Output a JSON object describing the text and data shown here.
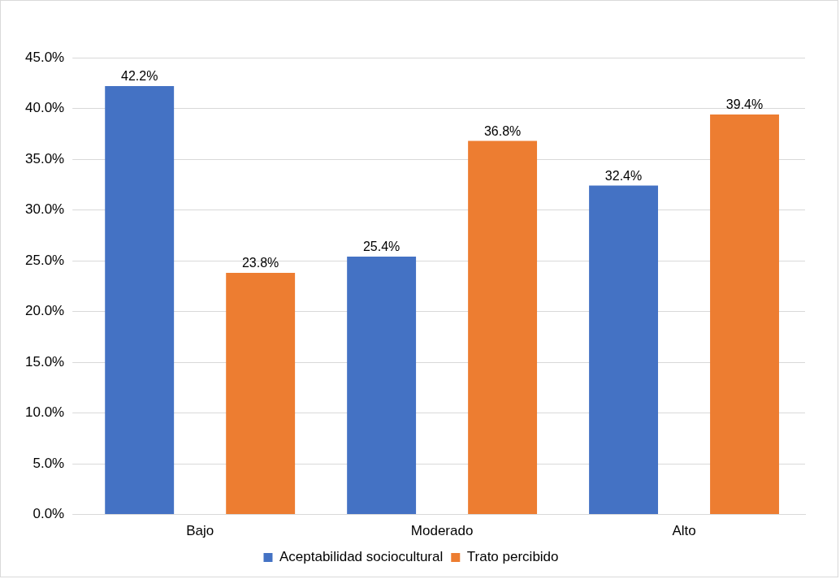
{
  "chart_data": {
    "type": "bar",
    "categories": [
      "Bajo",
      "Moderado",
      "Alto"
    ],
    "series": [
      {
        "name": "Aceptabilidad sociocultural",
        "color": "#4472c4",
        "values": [
          42.2,
          25.4,
          32.4
        ],
        "value_labels": [
          "42.2%",
          "25.4%",
          "32.4%"
        ]
      },
      {
        "name": "Trato percibido",
        "color": "#ed7d31",
        "values": [
          23.8,
          36.8,
          39.4
        ],
        "value_labels": [
          "23.8%",
          "36.8%",
          "39.4%"
        ]
      }
    ],
    "ylim": [
      0,
      45
    ],
    "yticks": [
      {
        "value": 0,
        "label": "0.0%"
      },
      {
        "value": 5,
        "label": "5.0%"
      },
      {
        "value": 10,
        "label": "10.0%"
      },
      {
        "value": 15,
        "label": "15.0%"
      },
      {
        "value": 20,
        "label": "20.0%"
      },
      {
        "value": 25,
        "label": "25.0%"
      },
      {
        "value": 30,
        "label": "30.0%"
      },
      {
        "value": 35,
        "label": "35.0%"
      },
      {
        "value": 40,
        "label": "40.0%"
      },
      {
        "value": 45,
        "label": "45.0%"
      }
    ],
    "grid": "y",
    "legend": "bottom"
  }
}
